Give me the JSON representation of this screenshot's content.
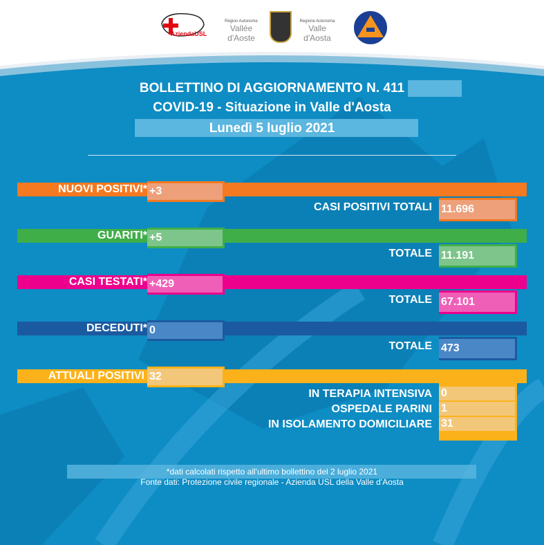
{
  "logos": {
    "usl": "Azienda USL",
    "usl_sub": "Valle d'Aosta",
    "region_fr_top": "Région Autonome",
    "region_fr": "Vallée d'Aoste",
    "region_it_top": "Regione Autonoma",
    "region_it": "Valle d'Aosta",
    "protezione": "Protezione Civile"
  },
  "header": {
    "line1": "BOLLETTINO DI AGGIORNAMENTO N. 411",
    "line2": "COVID-19 - Situazione in Valle d'Aosta",
    "line3": "Lunedì 5 luglio 2021"
  },
  "colors": {
    "background": "#0e8cc4",
    "orange": "#f47920",
    "green": "#3fae49",
    "pink": "#ec008c",
    "darkblue": "#1b5aa0",
    "yellow": "#fbb21a"
  },
  "rows": [
    {
      "label": "NUOVI POSITIVI*",
      "value": "+3",
      "total_label": "CASI POSITIVI TOTALI",
      "total": "11.696"
    },
    {
      "label": "GUARITI*",
      "value": "+5",
      "total_label": "TOTALE",
      "total": "11.191"
    },
    {
      "label": "CASI TESTATI*",
      "value": "+429",
      "total_label": "TOTALE",
      "total": "67.101"
    },
    {
      "label": "DECEDUTI*",
      "value": "0",
      "total_label": "TOTALE",
      "total": "473"
    }
  ],
  "attuali": {
    "label": "ATTUALI POSITIVI",
    "value": "32",
    "items": [
      {
        "label": "IN TERAPIA INTENSIVA",
        "value": "0"
      },
      {
        "label": "OSPEDALE PARINI",
        "value": "1"
      },
      {
        "label": "IN ISOLAMENTO DOMICILIARE",
        "value": "31"
      }
    ]
  },
  "footer": {
    "note": "*dati calcolati rispetto all'ultimo bollettino del 2 luglio 2021",
    "source": "Fonte dati: Protezione civile regionale - Azienda USL della Valle d'Aosta"
  }
}
